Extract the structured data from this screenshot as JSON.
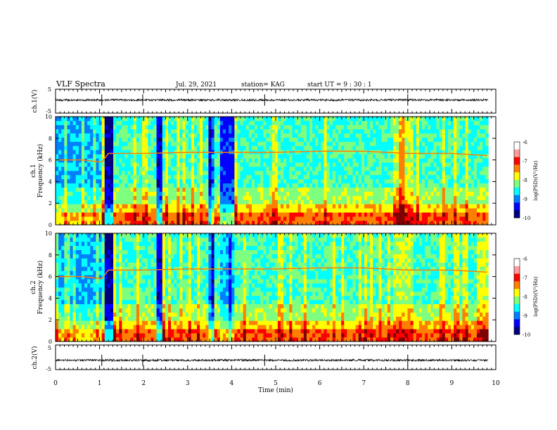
{
  "header": {
    "title": "VLF Spectra",
    "date": "Jul. 29, 2021",
    "station": "station= KAG",
    "start_ut": "start UT =  9 : 30 : 1"
  },
  "chart_data": [
    {
      "type": "line",
      "panel": "ch1-waveform",
      "ylabel": "ch.1(V)",
      "y_ticks": [
        "5",
        "-5"
      ],
      "ylim": [
        -5,
        5
      ],
      "x_range_min": [
        0,
        9.83
      ],
      "series": [
        {
          "values_note": "",
          "level": 0.5
        }
      ]
    },
    {
      "type": "heatmap",
      "panel": "ch1-spectrogram",
      "ylabel_lines": [
        "ch.1",
        "Frequency (kHz)"
      ],
      "y_ticks": [
        "0",
        "2",
        "4",
        "6",
        "8",
        "10"
      ],
      "ylim_khz": [
        0,
        10
      ],
      "x_range_min": [
        0,
        9.83
      ],
      "carrier_track_khz": [
        [
          0,
          6.0
        ],
        [
          0.6,
          6.0
        ],
        [
          1.05,
          5.8
        ],
        [
          1.2,
          6.6
        ],
        [
          2.0,
          6.6
        ],
        [
          3.0,
          6.7
        ],
        [
          4.0,
          6.7
        ],
        [
          5.0,
          6.7
        ],
        [
          6.0,
          6.8
        ],
        [
          7.0,
          6.8
        ],
        [
          8.0,
          6.6
        ],
        [
          9.0,
          6.6
        ],
        [
          9.8,
          6.4
        ]
      ],
      "colorbar": {
        "label": "log(PSD)(V²/Hz)",
        "ticks": [
          "-6",
          "-7",
          "-8",
          "-9",
          "-10"
        ],
        "range": [
          -10,
          -6
        ]
      }
    },
    {
      "type": "heatmap",
      "panel": "ch2-spectrogram",
      "ylabel_lines": [
        "ch.2",
        "Frequency (kHz)"
      ],
      "y_ticks": [
        "0",
        "2",
        "4",
        "6",
        "8",
        "10"
      ],
      "ylim_khz": [
        0,
        10
      ],
      "x_range_min": [
        0,
        9.83
      ],
      "carrier_track_khz": [
        [
          0,
          6.0
        ],
        [
          0.6,
          6.0
        ],
        [
          1.05,
          5.8
        ],
        [
          1.2,
          6.6
        ],
        [
          2.0,
          6.6
        ],
        [
          3.0,
          6.7
        ],
        [
          4.0,
          6.7
        ],
        [
          5.0,
          6.7
        ],
        [
          6.0,
          6.8
        ],
        [
          7.0,
          6.8
        ],
        [
          8.0,
          6.6
        ],
        [
          9.0,
          6.6
        ],
        [
          9.8,
          6.4
        ]
      ],
      "colorbar": {
        "label": "log(PSD)(V²/Hz)",
        "ticks": [
          "-6",
          "-7",
          "-8",
          "-9",
          "-10"
        ],
        "range": [
          -10,
          -6
        ]
      }
    },
    {
      "type": "line",
      "panel": "ch2-waveform",
      "ylabel": "ch.2(V)",
      "y_ticks": [
        "5",
        "-5"
      ],
      "ylim": [
        -5,
        5
      ],
      "x_range_min": [
        0,
        9.83
      ],
      "series": [
        {
          "values_note": "",
          "level": -1.2
        }
      ]
    }
  ],
  "x_axis": {
    "label": "Time (min)",
    "ticks": [
      "0",
      "1",
      "2",
      "3",
      "4",
      "5",
      "6",
      "7",
      "8",
      "9",
      "10"
    ],
    "xlim_min": [
      0,
      10
    ]
  },
  "colors": {
    "jet": [
      "#00007f",
      "#0000ff",
      "#007fff",
      "#00ffff",
      "#7fff7f",
      "#ffff00",
      "#ff7f00",
      "#ff0000",
      "#7f0000"
    ]
  }
}
